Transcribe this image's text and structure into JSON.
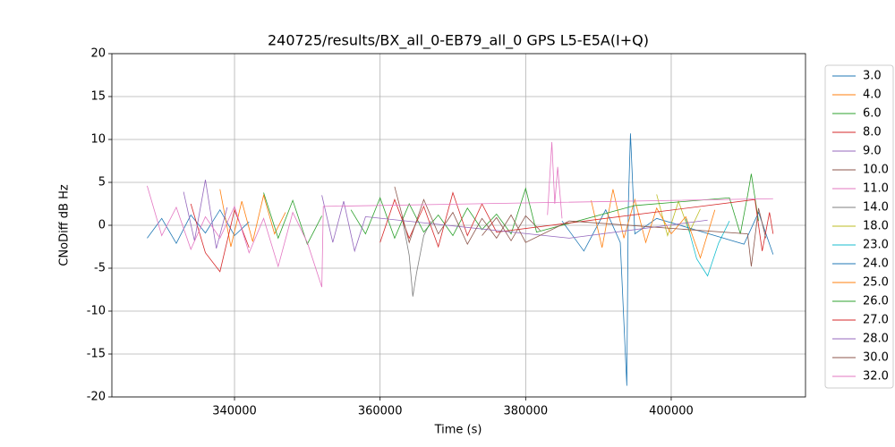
{
  "chart_data": {
    "type": "line",
    "title": "240725/results/BX_all_0-EB79_all_0 GPS L5-E5A(I+Q)",
    "x_label": "Time (s)",
    "y_label": "CNoDiff dB Hz",
    "xlim": [
      323150,
      418450
    ],
    "ylim": [
      -20,
      20
    ],
    "xticks": [
      340000,
      360000,
      380000,
      400000
    ],
    "yticks": [
      -20,
      -15,
      -10,
      -5,
      0,
      5,
      10,
      15,
      20
    ],
    "grid": true,
    "legend": "outside-right",
    "series": [
      {
        "name": "3.0",
        "color": "#1f77b4",
        "x": [
          328000,
          330000,
          332000,
          334000,
          336000,
          338000,
          340000,
          342000
        ],
        "values": [
          -1.5,
          0.8,
          -2.1,
          1.2,
          -0.9,
          1.8,
          -1.2,
          0.4
        ]
      },
      {
        "name": "4.0",
        "color": "#ff7f0e",
        "x": [
          338000,
          339500,
          341000,
          342500,
          344000,
          345500,
          347000
        ],
        "values": [
          4.2,
          -2.5,
          2.8,
          -1.9,
          3.5,
          -1.0,
          1.5
        ]
      },
      {
        "name": "6.0",
        "color": "#2ca02c",
        "x": [
          344000,
          346000,
          348000,
          350000,
          352000
        ],
        "values": [
          3.8,
          -1.5,
          2.9,
          -2.2,
          1.1
        ]
      },
      {
        "name": "8.0",
        "color": "#d62728",
        "x": [
          334000,
          336000,
          338000,
          340000,
          342000
        ],
        "values": [
          2.5,
          -3.2,
          -5.4,
          1.8,
          -2.6
        ]
      },
      {
        "name": "9.0",
        "color": "#9467bd",
        "x": [
          333000,
          334500,
          336000,
          337500,
          339000
        ],
        "values": [
          3.9,
          -1.8,
          5.3,
          -2.7,
          2.1
        ]
      },
      {
        "name": "10.0",
        "color": "#8c564b",
        "x": [
          374000,
          376000,
          378000,
          380000,
          382000
        ],
        "values": [
          -1.2,
          0.9,
          -1.8,
          1.1,
          -0.6
        ]
      },
      {
        "name": "11.0",
        "color": "#e377c2",
        "x": [
          383000,
          383600,
          384000,
          384400,
          385000
        ],
        "values": [
          1.2,
          9.7,
          2.5,
          6.8,
          0.8
        ]
      },
      {
        "name": "14.0",
        "color": "#7f7f7f",
        "x": [
          363000,
          364000,
          364500,
          365000,
          366000,
          367000
        ],
        "values": [
          1.0,
          -3.5,
          -8.3,
          -5.6,
          -1.2,
          0.5
        ]
      },
      {
        "name": "18.0",
        "color": "#bcbd22",
        "x": [
          398000,
          399500,
          401000,
          402500,
          404000
        ],
        "values": [
          3.6,
          -1.2,
          2.8,
          -0.8,
          1.9
        ]
      },
      {
        "name": "23.0",
        "color": "#17becf",
        "x": [
          402000,
          403500,
          405000,
          406500,
          408000
        ],
        "values": [
          0.8,
          -3.9,
          -5.9,
          -2.1,
          0.5
        ]
      },
      {
        "name": "24.0",
        "color": "#1f77b4",
        "x": [
          385000,
          388000,
          391000,
          393000,
          393900,
          394100,
          394400,
          395000,
          398000,
          410000,
          412000,
          414000
        ],
        "values": [
          0.5,
          -3.0,
          1.8,
          -2.0,
          -18.7,
          2.0,
          10.7,
          -1.0,
          0.8,
          -2.2,
          1.5,
          -3.4
        ]
      },
      {
        "name": "25.0",
        "color": "#ff7f0e",
        "x": [
          389000,
          390500,
          392000,
          393500,
          395000,
          396500,
          398000,
          400000,
          402000,
          404000,
          406000
        ],
        "values": [
          2.9,
          -2.6,
          4.2,
          -1.5,
          3.0,
          -2.0,
          2.0,
          -1.0,
          1.0,
          -3.8,
          1.8
        ]
      },
      {
        "name": "26.0",
        "color": "#2ca02c",
        "x": [
          356000,
          358000,
          360000,
          362000,
          364000,
          366000,
          368000,
          370000,
          372000,
          374000,
          376000,
          378000,
          380000,
          381500,
          395000,
          408000,
          409500,
          410500,
          411000,
          412000
        ],
        "values": [
          1.8,
          -1.0,
          3.2,
          -1.5,
          2.5,
          -0.8,
          1.2,
          -1.2,
          2.0,
          -0.5,
          1.3,
          -1.0,
          4.3,
          -0.8,
          2.3,
          3.2,
          -1.0,
          3.5,
          6.0,
          0.5
        ]
      },
      {
        "name": "27.0",
        "color": "#d62728",
        "x": [
          360000,
          362000,
          364000,
          366000,
          368000,
          370000,
          372000,
          374000,
          376000,
          411500,
          412500,
          413500,
          414000
        ],
        "values": [
          -2.0,
          3.0,
          -1.5,
          2.2,
          -2.5,
          3.8,
          -1.2,
          2.5,
          -0.8,
          3.0,
          -3.0,
          1.5,
          -1.0
        ]
      },
      {
        "name": "28.0",
        "color": "#9467bd",
        "x": [
          352000,
          353500,
          355000,
          356500,
          358000,
          386000,
          405000
        ],
        "values": [
          3.5,
          -2.0,
          2.8,
          -3.0,
          1.0,
          -1.5,
          0.6
        ]
      },
      {
        "name": "30.0",
        "color": "#8c564b",
        "x": [
          362000,
          364000,
          366000,
          368000,
          370000,
          372000,
          374000,
          376000,
          378000,
          380000,
          386000,
          410500,
          411000,
          412000,
          413000
        ],
        "values": [
          4.5,
          -2.0,
          3.0,
          -1.0,
          1.5,
          -2.2,
          0.8,
          -1.5,
          1.2,
          -2.0,
          0.5,
          -1.0,
          -4.8,
          2.0,
          -1.5
        ]
      },
      {
        "name": "32.0",
        "color": "#e377c2",
        "x": [
          328000,
          330000,
          332000,
          334000,
          336000,
          338000,
          340000,
          342000,
          344000,
          346000,
          348000,
          350000,
          352000,
          352200,
          414000
        ],
        "values": [
          4.6,
          -1.2,
          2.1,
          -2.8,
          1.0,
          -1.5,
          2.2,
          -3.2,
          0.8,
          -4.8,
          1.5,
          -2.0,
          -7.2,
          2.2,
          3.1
        ]
      }
    ]
  }
}
